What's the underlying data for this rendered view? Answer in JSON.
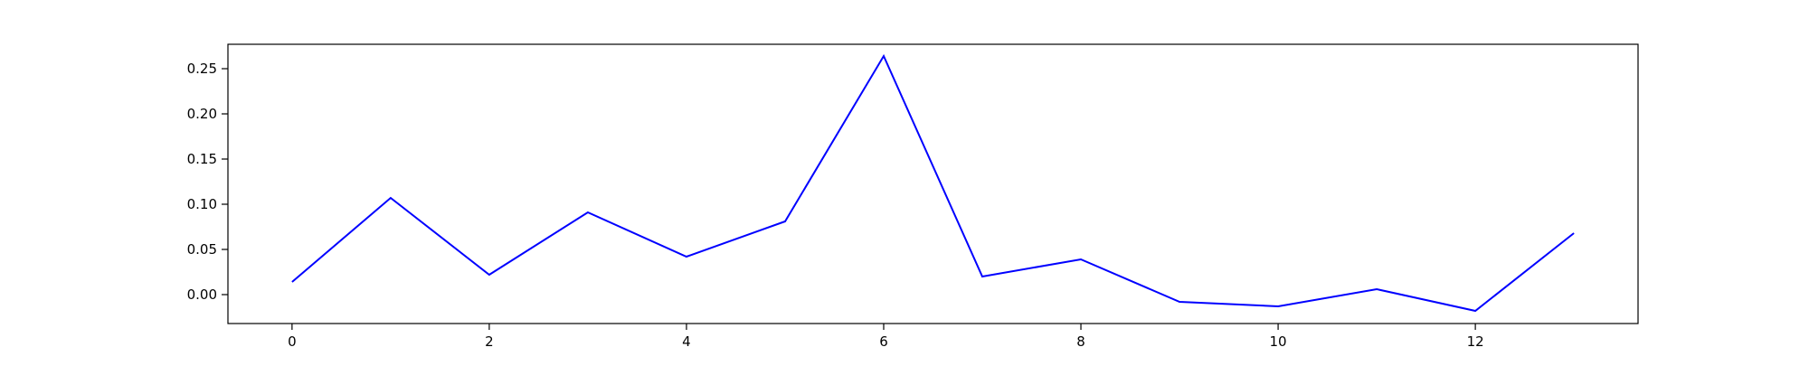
{
  "chart_data": {
    "type": "line",
    "title": "",
    "xlabel": "",
    "ylabel": "",
    "xlim": [
      -0.65,
      13.65
    ],
    "ylim": [
      -0.032,
      0.277
    ],
    "grid": false,
    "x": [
      0,
      1,
      2,
      3,
      4,
      5,
      6,
      7,
      8,
      9,
      10,
      11,
      12,
      13
    ],
    "series": [
      {
        "color": "#0000ff",
        "values": [
          0.014,
          0.107,
          0.022,
          0.091,
          0.042,
          0.081,
          0.264,
          0.02,
          0.039,
          -0.008,
          -0.013,
          0.006,
          -0.018,
          0.068
        ]
      }
    ],
    "xticks": [
      0,
      2,
      4,
      6,
      8,
      10,
      12
    ],
    "xtick_labels": [
      "0",
      "2",
      "4",
      "6",
      "8",
      "10",
      "12"
    ],
    "yticks": [
      0.0,
      0.05,
      0.1,
      0.15,
      0.2,
      0.25
    ],
    "ytick_labels": [
      "0.00",
      "0.05",
      "0.10",
      "0.15",
      "0.20",
      "0.25"
    ]
  }
}
